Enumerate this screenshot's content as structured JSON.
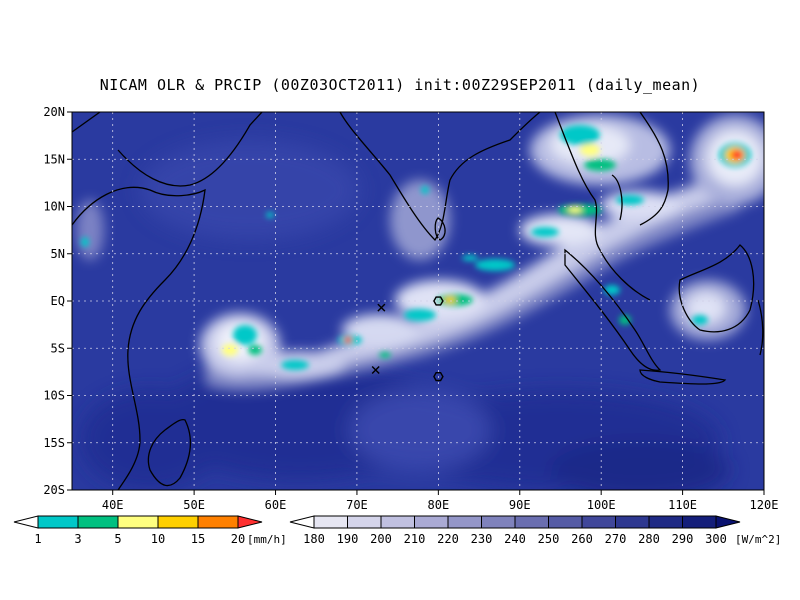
{
  "title": "NICAM OLR & PRCIP (00Z03OCT2011) init:00Z29SEP2011 (daily_mean)",
  "map": {
    "lat_labels": [
      "20N",
      "15N",
      "10N",
      "5N",
      "EQ",
      "5S",
      "10S",
      "15S",
      "20S"
    ],
    "lon_labels": [
      "40E",
      "50E",
      "60E",
      "70E",
      "80E",
      "90E",
      "100E",
      "110E",
      "120E"
    ],
    "lat_range": [
      -20,
      20
    ],
    "lon_range": [
      35,
      120
    ],
    "grid": true,
    "colors": {
      "olr_background": "#2a3aa0",
      "cloud_bright": "#e8ecf8",
      "coastline": "#000000"
    },
    "markers": [
      {
        "type": "x",
        "lon": 73,
        "lat": -0.7
      },
      {
        "type": "x",
        "lon": 72.3,
        "lat": -7.3
      },
      {
        "type": "hexagon",
        "lon": 80,
        "lat": 0
      },
      {
        "type": "hexagon",
        "lon": 80,
        "lat": -8
      }
    ]
  },
  "precip_legend": {
    "labels": [
      "1",
      "3",
      "5",
      "10",
      "15",
      "20"
    ],
    "unit": "[mm/h]",
    "colors": [
      "#ffffff",
      "#00c8c8",
      "#00c080",
      "#ffff80",
      "#ffd000",
      "#ff8000",
      "#ff3030"
    ]
  },
  "olr_legend": {
    "labels": [
      "180",
      "190",
      "200",
      "210",
      "220",
      "230",
      "240",
      "250",
      "260",
      "270",
      "280",
      "290",
      "300"
    ],
    "unit": "[W/m^2]",
    "colors": [
      "#ffffff",
      "#e6e6f2",
      "#d4d4ea",
      "#c0c0e0",
      "#aaaad4",
      "#9496c8",
      "#7f82bc",
      "#6a6eb0",
      "#555ba5",
      "#40479a",
      "#2e3890",
      "#1f2a85",
      "#141e7a",
      "#0a1270"
    ]
  }
}
